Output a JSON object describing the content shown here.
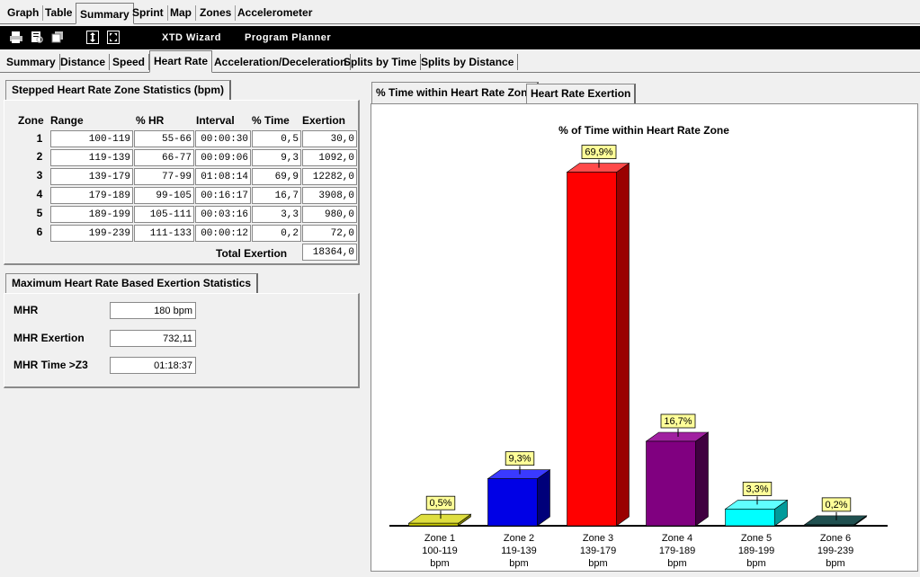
{
  "topnav": {
    "tabs": [
      "Graph",
      "Table",
      "Summary",
      "Sprint",
      "Map",
      "Zones",
      "Accelerometer"
    ],
    "active": "Summary"
  },
  "toolbar": {
    "icons": [
      "print-icon",
      "print-preview-icon",
      "copy-icon",
      "fit-height-icon",
      "fit-all-icon"
    ],
    "xtd_wizard": "XTD Wizard",
    "program_planner": "Program Planner"
  },
  "subtabs": {
    "tabs": [
      "Summary",
      "Distance",
      "Speed",
      "Heart Rate",
      "Acceleration/Deceleration",
      "Splits by Time",
      "Splits by Distance"
    ],
    "active": "Heart Rate"
  },
  "zone_stats": {
    "title": "Stepped Heart Rate Zone Statistics (bpm)",
    "headers": {
      "zone": "Zone",
      "range": "Range",
      "hr": "% HR",
      "interval": "Interval",
      "time": "% Time",
      "exertion": "Exertion"
    },
    "rows": [
      {
        "zone": "1",
        "range": "100-119",
        "hr": "55-66",
        "interval": "00:00:30",
        "time": "0,5",
        "exertion": "30,0"
      },
      {
        "zone": "2",
        "range": "119-139",
        "hr": "66-77",
        "interval": "00:09:06",
        "time": "9,3",
        "exertion": "1092,0"
      },
      {
        "zone": "3",
        "range": "139-179",
        "hr": "77-99",
        "interval": "01:08:14",
        "time": "69,9",
        "exertion": "12282,0"
      },
      {
        "zone": "4",
        "range": "179-189",
        "hr": "99-105",
        "interval": "00:16:17",
        "time": "16,7",
        "exertion": "3908,0"
      },
      {
        "zone": "5",
        "range": "189-199",
        "hr": "105-111",
        "interval": "00:03:16",
        "time": "3,3",
        "exertion": "980,0"
      },
      {
        "zone": "6",
        "range": "199-239",
        "hr": "111-133",
        "interval": "00:00:12",
        "time": "0,2",
        "exertion": "72,0"
      }
    ],
    "total_label": "Total Exertion",
    "total_value": "18364,0"
  },
  "mhr_stats": {
    "title": "Maximum Heart Rate Based Exertion Statistics",
    "mhr_label": "MHR",
    "mhr_value": "180 bpm",
    "exertion_label": "MHR Exertion",
    "exertion_value": "732,11",
    "time_label": "MHR Time  >Z3",
    "time_value": "01:18:37"
  },
  "chart_tabs": {
    "time": "% Time within Heart Rate Zone",
    "exertion": "Heart Rate Exertion",
    "active": "time"
  },
  "chart_data": {
    "type": "bar",
    "title": "% of Time within Heart Rate Zone",
    "categories": [
      "Zone 1",
      "Zone 2",
      "Zone 3",
      "Zone 4",
      "Zone 5",
      "Zone 6"
    ],
    "category_ranges": [
      "100-119",
      "119-139",
      "139-179",
      "179-189",
      "189-199",
      "199-239"
    ],
    "category_unit": "bpm",
    "values": [
      0.5,
      9.3,
      69.9,
      16.7,
      3.3,
      0.2
    ],
    "value_labels": [
      "0,5%",
      "9,3%",
      "69,9%",
      "16,7%",
      "3,3%",
      "0,2%"
    ],
    "colors": [
      "#c8c800",
      "#0000e6",
      "#ff0000",
      "#800080",
      "#00ffff",
      "#004040"
    ],
    "side_colors": [
      "#7a7a00",
      "#00007a",
      "#9a0000",
      "#400040",
      "#009a9a",
      "#002020"
    ],
    "top_colors": [
      "#dede40",
      "#3a3aff",
      "#ff4a4a",
      "#a020a0",
      "#60ffff",
      "#205050"
    ],
    "ylim": [
      0,
      70
    ]
  }
}
